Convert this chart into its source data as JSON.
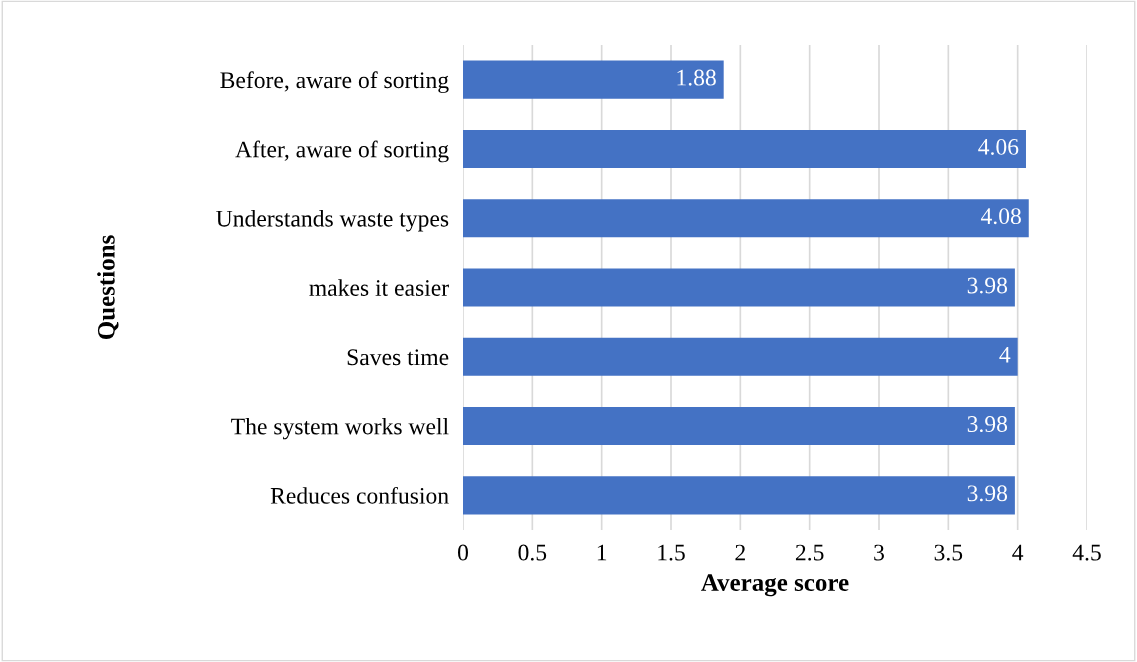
{
  "chart_data": {
    "type": "bar",
    "orientation": "horizontal",
    "xlabel": "Average score",
    "ylabel": "Questions",
    "categories": [
      "Before, aware of sorting",
      "After, aware of sorting",
      "Understands waste types",
      "makes it easier",
      "Saves time",
      "The system works well",
      "Reduces confusion"
    ],
    "values": [
      1.88,
      4.06,
      4.08,
      3.98,
      4,
      3.98,
      3.98
    ],
    "color": "#4472c4",
    "xlim": [
      0,
      4.5
    ],
    "xticks": [
      0,
      0.5,
      1,
      1.5,
      2,
      2.5,
      3,
      3.5,
      4,
      4.5
    ],
    "grid": "x",
    "data_labels": true
  }
}
